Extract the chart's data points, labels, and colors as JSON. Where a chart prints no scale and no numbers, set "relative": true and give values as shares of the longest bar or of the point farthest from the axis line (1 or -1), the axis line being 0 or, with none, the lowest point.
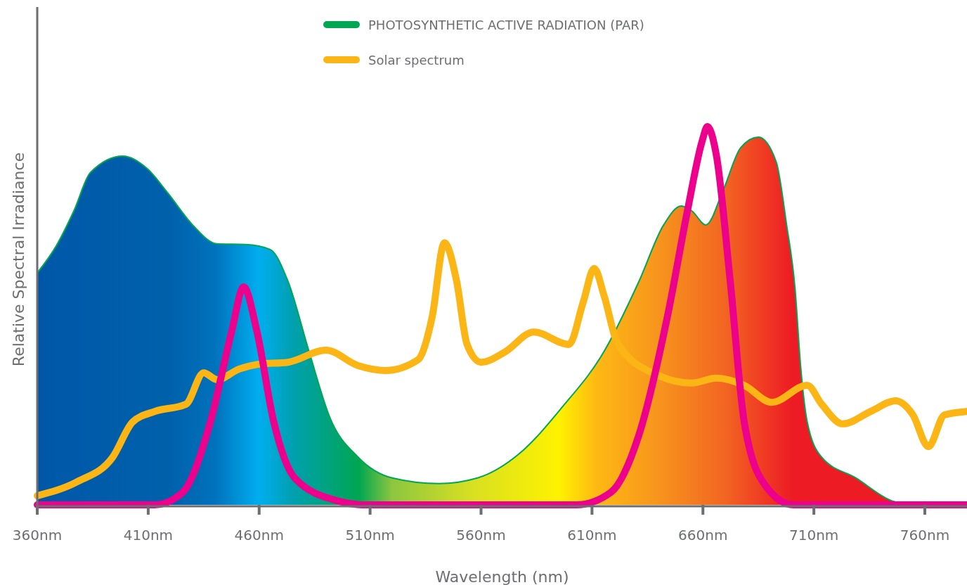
{
  "chart_data": {
    "type": "area",
    "relative": true,
    "xlabel": "Wavelength (nm)",
    "ylabel": "Relative Spectral Irradiance",
    "xlim": [
      360,
      779
    ],
    "xticks": [
      {
        "value": 360,
        "label": "360nm"
      },
      {
        "value": 410,
        "label": "410nm"
      },
      {
        "value": 460,
        "label": "460nm"
      },
      {
        "value": 510,
        "label": "510nm"
      },
      {
        "value": 560,
        "label": "560nm"
      },
      {
        "value": 610,
        "label": "610nm"
      },
      {
        "value": 660,
        "label": "660nm"
      },
      {
        "value": 710,
        "label": "710nm"
      },
      {
        "value": 760,
        "label": "760nm"
      }
    ],
    "legend": "top",
    "grid": false,
    "series": [
      {
        "name": "PHOTOSYNTHETIC ACTIVE RADIATION (PAR)",
        "color": "#00a651",
        "x": [
          360,
          368.5,
          376.5,
          384,
          398.6,
          409.7,
          419,
          430,
          441,
          454,
          465,
          473,
          482.5,
          492,
          504.6,
          520,
          541,
          558.4,
          577.4,
          596.4,
          615.4,
          631.2,
          642.3,
          650.2,
          655,
          661.3,
          669.2,
          677,
          685,
          693,
          697.7,
          701.5,
          704,
          707,
          713.5,
          729,
          745,
          754.6,
          779
        ],
        "values": [
          0.613,
          0.684,
          0.777,
          0.879,
          0.922,
          0.888,
          0.823,
          0.74,
          0.69,
          0.688,
          0.675,
          0.591,
          0.405,
          0.229,
          0.126,
          0.071,
          0.056,
          0.071,
          0.136,
          0.257,
          0.405,
          0.591,
          0.74,
          0.79,
          0.777,
          0.74,
          0.833,
          0.944,
          0.972,
          0.907,
          0.74,
          0.572,
          0.368,
          0.219,
          0.126,
          0.071,
          0.011,
          0,
          0
        ]
      },
      {
        "name": "Solar spectrum",
        "type": "line",
        "color": "#fbb615",
        "x": [
          360,
          378,
          394,
          403,
          413,
          427,
          435,
          441,
          451,
          460,
          473,
          490,
          504.6,
          517,
          531.5,
          538,
          543.5,
          549,
          553.7,
          560,
          571,
          583.7,
          599.6,
          606,
          611,
          615.4,
          621.7,
          640.7,
          655,
          666,
          678.6,
          691,
          707,
          713.5,
          723,
          735.6,
          746.7,
          754.6,
          761.6,
          768.9,
          779
        ],
        "values": [
          0.024,
          0.061,
          0.126,
          0.219,
          0.247,
          0.266,
          0.349,
          0.331,
          0.359,
          0.372,
          0.377,
          0.409,
          0.368,
          0.355,
          0.383,
          0.498,
          0.693,
          0.591,
          0.424,
          0.377,
          0.405,
          0.457,
          0.424,
          0.535,
          0.625,
          0.554,
          0.424,
          0.34,
          0.322,
          0.335,
          0.316,
          0.271,
          0.316,
          0.266,
          0.214,
          0.247,
          0.275,
          0.238,
          0.154,
          0.238,
          0.247
        ]
      },
      {
        "type": "line",
        "color": "#ec008c",
        "x": [
          360,
          413,
          425.5,
          438,
          447.7,
          453,
          458.9,
          466.6,
          476,
          495,
          508,
          603,
          618.5,
          631,
          644,
          653,
          659.7,
          662,
          666,
          672.3,
          678.6,
          688,
          700.8,
          779
        ],
        "values": [
          0,
          0,
          0.033,
          0.219,
          0.461,
          0.576,
          0.461,
          0.219,
          0.071,
          0.011,
          0,
          0,
          0.033,
          0.182,
          0.498,
          0.777,
          0.963,
          1,
          0.926,
          0.591,
          0.219,
          0.052,
          0,
          0
        ]
      }
    ]
  }
}
